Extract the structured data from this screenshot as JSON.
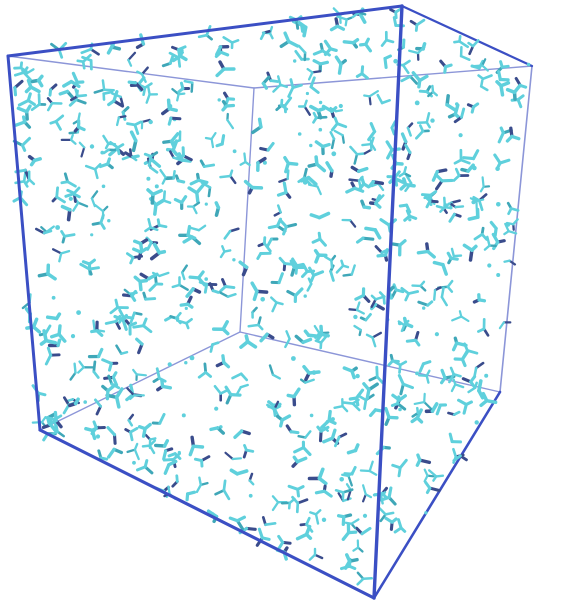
{
  "scene": {
    "subject": "simulation-box-with-molecules",
    "colors": {
      "background": "#ffffff",
      "box_front_edge": "#3b4fc4",
      "box_back_edge": "#8c96d8",
      "molecule_light": "#5fd0dc",
      "molecule_mid": "#3fa7b8",
      "molecule_dark": "#3a4c8c"
    }
  }
}
